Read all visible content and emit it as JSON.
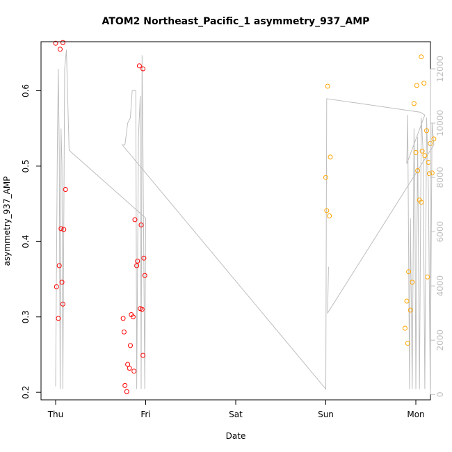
{
  "chart_data": {
    "type": "scatter",
    "title": "ATOM2 Northeast_Pacific_1 asymmetry_937_AMP",
    "xlabel": "Date",
    "ylabel": "asymmetry_937_AMP",
    "x_ticks": [
      "Thu",
      "Fri",
      "Sat",
      "Sun",
      "Mon"
    ],
    "xlim": [
      -0.2,
      4.1
    ],
    "ylim": [
      0.19,
      0.665
    ],
    "y_ticks": [
      0.2,
      0.3,
      0.4,
      0.5,
      0.6
    ],
    "y_tick_labels": [
      "0.2",
      "0.3",
      "0.4",
      "0.5",
      "0.6"
    ],
    "y2lim": [
      -200,
      13000
    ],
    "y2_ticks": [
      0,
      2000,
      4000,
      6000,
      8000,
      10000,
      12000
    ],
    "y2_tick_labels": [
      "0",
      "2000",
      "4000",
      "6000",
      "8000",
      "10000",
      "12000"
    ],
    "grid": false,
    "colors": {
      "red": "#ff0000",
      "orange": "#ffa500",
      "line": "#bebebe"
    },
    "series": [
      {
        "color": "red",
        "points": [
          [
            0.0,
            0.663
          ],
          [
            0.05,
            0.655
          ],
          [
            0.08,
            0.664
          ],
          [
            0.11,
            0.469
          ],
          [
            0.06,
            0.417
          ],
          [
            0.09,
            0.416
          ],
          [
            0.04,
            0.368
          ],
          [
            0.07,
            0.346
          ],
          [
            0.01,
            0.34
          ],
          [
            0.08,
            0.317
          ],
          [
            0.03,
            0.298
          ],
          [
            0.93,
            0.633
          ],
          [
            0.97,
            0.629
          ],
          [
            0.88,
            0.429
          ],
          [
            0.95,
            0.422
          ],
          [
            0.98,
            0.378
          ],
          [
            0.91,
            0.374
          ],
          [
            0.9,
            0.368
          ],
          [
            0.99,
            0.355
          ],
          [
            0.94,
            0.311
          ],
          [
            0.96,
            0.31
          ],
          [
            0.84,
            0.303
          ],
          [
            0.86,
            0.3
          ],
          [
            0.75,
            0.298
          ],
          [
            0.76,
            0.28
          ],
          [
            0.83,
            0.262
          ],
          [
            0.97,
            0.249
          ],
          [
            0.8,
            0.237
          ],
          [
            0.82,
            0.232
          ],
          [
            0.87,
            0.228
          ],
          [
            0.77,
            0.209
          ],
          [
            0.79,
            0.201
          ]
        ]
      },
      {
        "color": "orange",
        "points": [
          [
            4.01,
            0.607
          ],
          [
            4.06,
            0.645
          ],
          [
            4.09,
            0.61
          ],
          [
            3.98,
            0.583
          ],
          [
            4.12,
            0.547
          ],
          [
            4.2,
            0.536
          ],
          [
            4.16,
            0.53
          ],
          [
            4.07,
            0.52
          ],
          [
            4.0,
            0.518
          ],
          [
            4.1,
            0.514
          ],
          [
            4.14,
            0.505
          ],
          [
            4.02,
            0.494
          ],
          [
            4.18,
            0.491
          ],
          [
            4.15,
            0.49
          ],
          [
            4.04,
            0.455
          ],
          [
            4.06,
            0.452
          ],
          [
            4.13,
            0.353
          ],
          [
            3.92,
            0.36
          ],
          [
            3.96,
            0.346
          ],
          [
            3.9,
            0.321
          ],
          [
            3.94,
            0.309
          ],
          [
            3.88,
            0.285
          ],
          [
            3.91,
            0.265
          ],
          [
            3.02,
            0.606
          ],
          [
            3.05,
            0.512
          ],
          [
            3.0,
            0.485
          ],
          [
            3.01,
            0.441
          ],
          [
            3.04,
            0.434
          ]
        ]
      }
    ],
    "y2_line": [
      [
        0.0,
        300
      ],
      [
        0.02,
        9500
      ],
      [
        0.03,
        12000
      ],
      [
        0.04,
        9000
      ],
      [
        0.05,
        200
      ],
      [
        0.06,
        9800
      ],
      [
        0.07,
        8500
      ],
      [
        0.08,
        200
      ],
      [
        0.1,
        12000
      ],
      [
        0.12,
        12700
      ],
      [
        0.15,
        9000
      ],
      [
        1.0,
        6500
      ],
      [
        0.99,
        200
      ],
      [
        0.97,
        9000
      ],
      [
        0.96,
        12500
      ],
      [
        0.95,
        200
      ],
      [
        0.94,
        11000
      ],
      [
        0.92,
        9500
      ],
      [
        0.9,
        200
      ],
      [
        0.89,
        11200
      ],
      [
        0.88,
        11200
      ],
      [
        0.85,
        11200
      ],
      [
        0.83,
        10200
      ],
      [
        0.8,
        10000
      ],
      [
        0.77,
        9200
      ],
      [
        0.74,
        9200
      ],
      [
        3.0,
        200
      ],
      [
        3.01,
        10900
      ],
      [
        4.05,
        10400
      ],
      [
        4.1,
        10300
      ],
      [
        3.9,
        8500
      ],
      [
        3.91,
        10300
      ],
      [
        3.93,
        200
      ],
      [
        3.94,
        6500
      ],
      [
        3.96,
        200
      ],
      [
        3.98,
        9800
      ],
      [
        3.99,
        7000
      ],
      [
        4.0,
        200
      ],
      [
        4.02,
        9500
      ],
      [
        4.04,
        200
      ],
      [
        4.06,
        10200
      ],
      [
        4.08,
        9000
      ],
      [
        4.1,
        200
      ],
      [
        4.12,
        10200
      ],
      [
        4.14,
        7500
      ],
      [
        4.16,
        200
      ],
      [
        4.18,
        10000
      ],
      [
        4.2,
        9200
      ],
      [
        3.02,
        3000
      ],
      [
        3.03,
        4700
      ]
    ]
  }
}
